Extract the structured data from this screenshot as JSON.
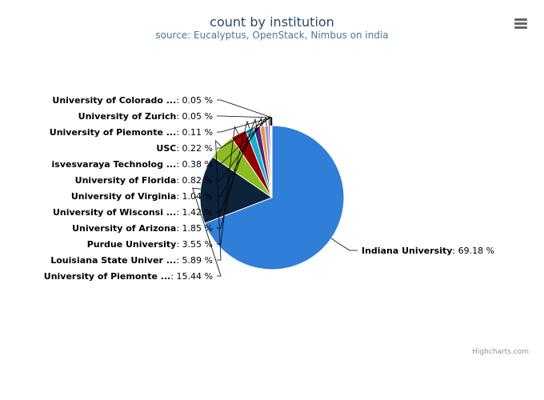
{
  "chart_data": {
    "type": "pie",
    "title": "count by institution",
    "subtitle": "source: Eucalyptus, OpenStack, Nimbus on india",
    "slices": [
      {
        "name": "Indiana University",
        "label": "Indiana University",
        "value": 69.18,
        "value_label": ": 69.18 %",
        "color": "#2f7ed8"
      },
      {
        "name": "University of Piemonte Orientale",
        "label": "University of Piemonte ...",
        "value": 15.44,
        "value_label": ": 15.44 %",
        "color": "#0d233a"
      },
      {
        "name": "Louisiana State University",
        "label": "Louisiana State Univer ...",
        "value": 5.89,
        "value_label": ": 5.89 %",
        "color": "#8bbc21"
      },
      {
        "name": "Purdue University",
        "label": "Purdue University",
        "value": 3.55,
        "value_label": ": 3.55 %",
        "color": "#910000"
      },
      {
        "name": "University of Arizona",
        "label": "University of Arizona",
        "value": 1.85,
        "value_label": ": 1.85 %",
        "color": "#1aadce"
      },
      {
        "name": "University of Wisconsin",
        "label": "University of Wisconsi ...",
        "value": 1.42,
        "value_label": ": 1.42 %",
        "color": "#492970"
      },
      {
        "name": "University of Virginia",
        "label": "University of Virginia",
        "value": 1.04,
        "value_label": ": 1.04 %",
        "color": "#f28f43"
      },
      {
        "name": "University of Florida",
        "label": "University of Florida",
        "value": 0.82,
        "value_label": ": 0.82 %",
        "color": "#77a1e5"
      },
      {
        "name": "Visvesvaraya Technological University",
        "label": "isvesvaraya Technolog ...",
        "value": 0.38,
        "value_label": ": 0.38 %",
        "color": "#c42525"
      },
      {
        "name": "USC",
        "label": "USC",
        "value": 0.22,
        "value_label": ": 0.22 %",
        "color": "#a6c96a"
      },
      {
        "name": "University of Piemonte",
        "label": "University of Piemonte ...",
        "value": 0.11,
        "value_label": ": 0.11 %",
        "color": "#2f7ed8"
      },
      {
        "name": "University of Zurich",
        "label": "University of Zurich",
        "value": 0.05,
        "value_label": ": 0.05 %",
        "color": "#0d233a"
      },
      {
        "name": "University of Colorado",
        "label": "University of Colorado ...",
        "value": 0.05,
        "value_label": ": 0.05 %",
        "color": "#8bbc21"
      }
    ],
    "legend": "none"
  },
  "credits": "Highcharts.com",
  "menu_icon": "hamburger-menu-icon"
}
